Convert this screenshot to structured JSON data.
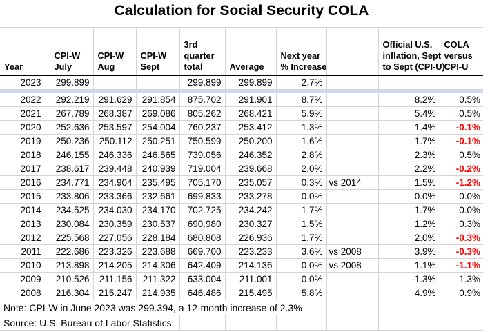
{
  "title": "Calculation for Social Security COLA",
  "colors": {
    "negative_value": "#ff0000",
    "separator_band": "#cdd9ec",
    "gridline": "#d4d4d4",
    "header_border": "#000000"
  },
  "table": {
    "column_keys": [
      "year",
      "cpiw-july",
      "cpiw-aug",
      "cpiw-sept",
      "q3-total",
      "average",
      "next-year-increase",
      "comparison",
      "cpiu-inflation",
      "cola-vs-cpiu"
    ],
    "header_display": [
      "Year",
      "CPI-W\nJuly",
      "CPI-W\nAug",
      "CPI-W\nSept",
      "3rd\nquarter\ntotal",
      "Average",
      "Next year\n% Increase",
      "",
      "Official U.S.\ninflation, Sept\nto Sept (CPI-U)",
      "COLA\nversus\nCPI-U"
    ],
    "rows": [
      {
        "year": "2023",
        "july": "299.899",
        "aug": "",
        "sept": "",
        "q3_total": "299.899",
        "average": "299.899",
        "next_year_increase": "2.7%",
        "comparison": "",
        "cpiu_inflation": "",
        "cola_vs_cpiu": ""
      },
      {
        "year": "2022",
        "july": "292.219",
        "aug": "291.629",
        "sept": "291.854",
        "q3_total": "875.702",
        "average": "291.901",
        "next_year_increase": "8.7%",
        "comparison": "",
        "cpiu_inflation": "8.2%",
        "cola_vs_cpiu": "0.5%"
      },
      {
        "year": "2021",
        "july": "267.789",
        "aug": "268.387",
        "sept": "269.086",
        "q3_total": "805.262",
        "average": "268.421",
        "next_year_increase": "5.9%",
        "comparison": "",
        "cpiu_inflation": "5.4%",
        "cola_vs_cpiu": "0.5%"
      },
      {
        "year": "2020",
        "july": "252.636",
        "aug": "253.597",
        "sept": "254.004",
        "q3_total": "760.237",
        "average": "253.412",
        "next_year_increase": "1.3%",
        "comparison": "",
        "cpiu_inflation": "1.4%",
        "cola_vs_cpiu": "-0.1%"
      },
      {
        "year": "2019",
        "july": "250.236",
        "aug": "250.112",
        "sept": "250.251",
        "q3_total": "750.599",
        "average": "250.200",
        "next_year_increase": "1.6%",
        "comparison": "",
        "cpiu_inflation": "1.7%",
        "cola_vs_cpiu": "-0.1%"
      },
      {
        "year": "2018",
        "july": "246.155",
        "aug": "246.336",
        "sept": "246.565",
        "q3_total": "739.056",
        "average": "246.352",
        "next_year_increase": "2.8%",
        "comparison": "",
        "cpiu_inflation": "2.3%",
        "cola_vs_cpiu": "0.5%"
      },
      {
        "year": "2017",
        "july": "238.617",
        "aug": "239.448",
        "sept": "240.939",
        "q3_total": "719.004",
        "average": "239.668",
        "next_year_increase": "2.0%",
        "comparison": "",
        "cpiu_inflation": "2.2%",
        "cola_vs_cpiu": "-0.2%"
      },
      {
        "year": "2016",
        "july": "234.771",
        "aug": "234.904",
        "sept": "235.495",
        "q3_total": "705.170",
        "average": "235.057",
        "next_year_increase": "0.3%",
        "comparison": "vs 2014",
        "cpiu_inflation": "1.5%",
        "cola_vs_cpiu": "-1.2%"
      },
      {
        "year": "2015",
        "july": "233.806",
        "aug": "233.366",
        "sept": "232.661",
        "q3_total": "699.833",
        "average": "233.278",
        "next_year_increase": "0.0%",
        "comparison": "",
        "cpiu_inflation": "0.0%",
        "cola_vs_cpiu": "0.0%"
      },
      {
        "year": "2014",
        "july": "234.525",
        "aug": "234.030",
        "sept": "234.170",
        "q3_total": "702.725",
        "average": "234.242",
        "next_year_increase": "1.7%",
        "comparison": "",
        "cpiu_inflation": "1.7%",
        "cola_vs_cpiu": "0.0%"
      },
      {
        "year": "2013",
        "july": "230.084",
        "aug": "230.359",
        "sept": "230.537",
        "q3_total": "690.980",
        "average": "230.327",
        "next_year_increase": "1.5%",
        "comparison": "",
        "cpiu_inflation": "1.2%",
        "cola_vs_cpiu": "0.3%"
      },
      {
        "year": "2012",
        "july": "225.568",
        "aug": "227.056",
        "sept": "228.184",
        "q3_total": "680.808",
        "average": "226.936",
        "next_year_increase": "1.7%",
        "comparison": "",
        "cpiu_inflation": "2.0%",
        "cola_vs_cpiu": "-0.3%"
      },
      {
        "year": "2011",
        "july": "222.686",
        "aug": "223.326",
        "sept": "223.688",
        "q3_total": "669.700",
        "average": "223.233",
        "next_year_increase": "3.6%",
        "comparison": "vs 2008",
        "cpiu_inflation": "3.9%",
        "cola_vs_cpiu": "-0.3%"
      },
      {
        "year": "2010",
        "july": "213.898",
        "aug": "214.205",
        "sept": "214.306",
        "q3_total": "642.409",
        "average": "214.136",
        "next_year_increase": "0.0%",
        "comparison": "vs 2008",
        "cpiu_inflation": "1.1%",
        "cola_vs_cpiu": "-1.1%"
      },
      {
        "year": "2009",
        "july": "210.526",
        "aug": "211.156",
        "sept": "211.322",
        "q3_total": "633.004",
        "average": "211.001",
        "next_year_increase": "0.0%",
        "comparison": "",
        "cpiu_inflation": "-1.3%",
        "cola_vs_cpiu": "1.3%"
      },
      {
        "year": "2008",
        "july": "216.304",
        "aug": "215.247",
        "sept": "214.935",
        "q3_total": "646.486",
        "average": "215.495",
        "next_year_increase": "5.8%",
        "comparison": "",
        "cpiu_inflation": "4.9%",
        "cola_vs_cpiu": "0.9%"
      }
    ]
  },
  "footnotes": {
    "note": "Note: CPI-W in June 2023 was 299.394, a 12-month increase of 2.3%",
    "source": "Source: U.S. Bureau of Labor Statistics"
  }
}
